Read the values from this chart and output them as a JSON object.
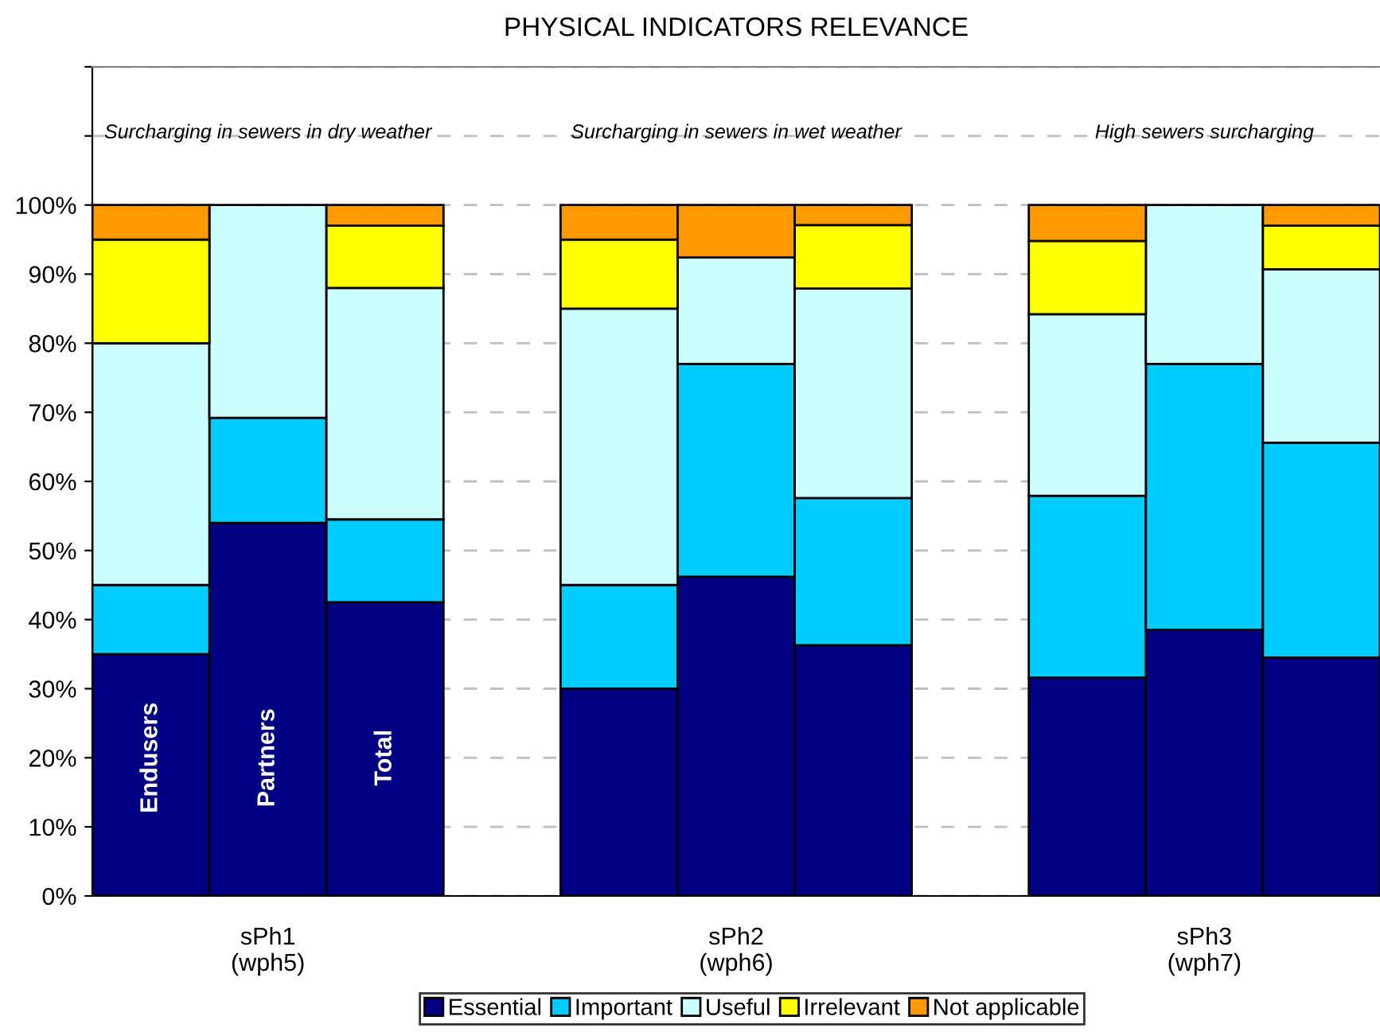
{
  "chart_data": {
    "type": "bar",
    "stacked": true,
    "title": "PHYSICAL INDICATORS RELEVANCE",
    "categories": [
      null,
      "sPh1\n(wph5)",
      null,
      null,
      null,
      "sPh2\n(wph6)",
      null,
      null,
      null,
      "sPh3\n(wph7)",
      null
    ],
    "series": [
      {
        "name": "Essential",
        "color": "#000080",
        "values": [
          35,
          54,
          42.5,
          null,
          30,
          46.2,
          36.3,
          null,
          31.6,
          38.5,
          34.5
        ]
      },
      {
        "name": "Important",
        "color": "#00ccff",
        "values": [
          10,
          15.2,
          12,
          null,
          15,
          30.8,
          21.3,
          null,
          26.3,
          38.5,
          31.1
        ]
      },
      {
        "name": "Useful",
        "color": "#ccffff",
        "values": [
          35,
          30.8,
          33.5,
          null,
          40,
          15.4,
          30.3,
          null,
          26.3,
          23,
          25.1
        ]
      },
      {
        "name": "Irrelevant",
        "color": "#ffff00",
        "values": [
          15,
          null,
          9,
          null,
          10,
          null,
          9.2,
          null,
          10.6,
          null,
          6.3
        ]
      },
      {
        "name": "Not applicable",
        "color": "#ff9900",
        "values": [
          5,
          null,
          3,
          null,
          5,
          7.6,
          2.9,
          null,
          5.2,
          null,
          3
        ]
      }
    ],
    "ylim": [
      0,
      120
    ],
    "yticks": [
      {
        "value": 0,
        "label": "0%"
      },
      {
        "value": 10,
        "label": "10%"
      },
      {
        "value": 20,
        "label": "20%"
      },
      {
        "value": 30,
        "label": "30%"
      },
      {
        "value": 40,
        "label": "40%"
      },
      {
        "value": 50,
        "label": "50%"
      },
      {
        "value": 60,
        "label": "60%"
      },
      {
        "value": 70,
        "label": "70%"
      },
      {
        "value": 80,
        "label": "80%"
      },
      {
        "value": 90,
        "label": "90%"
      },
      {
        "value": 100,
        "label": "100%"
      },
      {
        "value": 110,
        "label": null
      },
      {
        "value": 120,
        "label": null
      }
    ],
    "grid": "y",
    "legend": "bottom",
    "annotations": [
      "Surcharging in sewers in dry weather",
      "Surcharging in sewers in wet weather",
      "High sewers surcharging",
      "Endusers",
      "Partners",
      "Total"
    ]
  }
}
